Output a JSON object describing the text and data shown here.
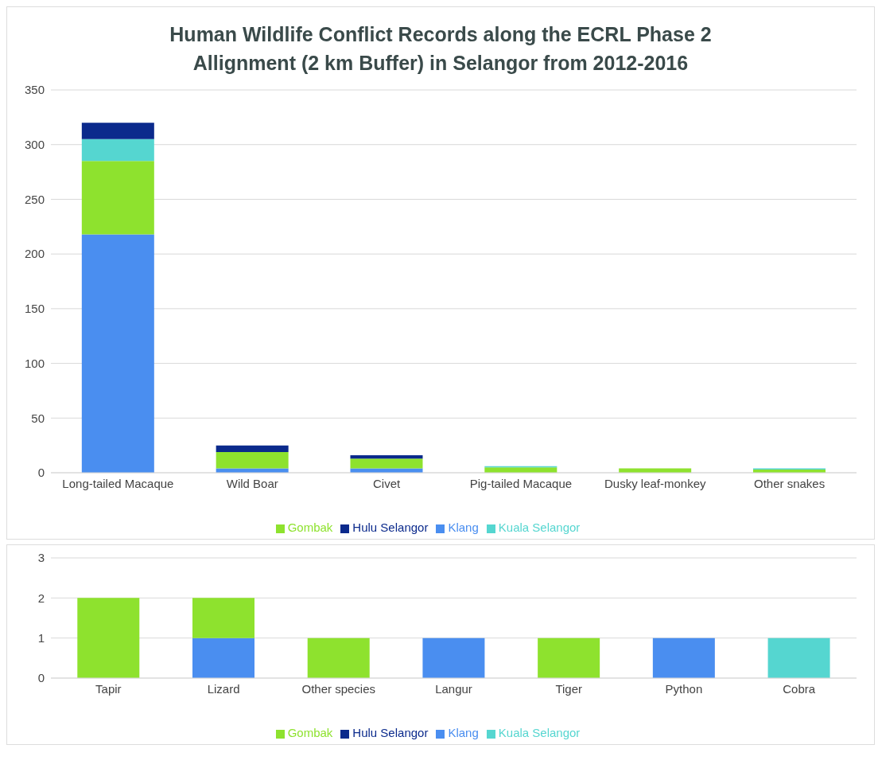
{
  "chart_data": [
    {
      "type": "bar",
      "title": "Human Wildlife Conflict Records along the ECRL Phase 2 Allignment (2 km Buffer) in Selangor from 2012-2016",
      "categories": [
        "Long-tailed Macaque",
        "Wild Boar",
        "Civet",
        "Pig-tailed Macaque",
        "Dusky leaf-monkey",
        "Other snakes"
      ],
      "stacked": true,
      "series": [
        {
          "name": "Klang",
          "color": "#4a8ef0",
          "values": [
            218,
            4,
            4,
            0,
            0,
            0
          ]
        },
        {
          "name": "Gombak",
          "color": "#8ee22e",
          "values": [
            67,
            15,
            9,
            5,
            4,
            3
          ]
        },
        {
          "name": "Kuala Selangor",
          "color": "#55d6d0",
          "values": [
            20,
            0,
            0,
            1,
            0,
            1
          ]
        },
        {
          "name": "Hulu Selangor",
          "color": "#0b2a8c",
          "values": [
            15,
            6,
            3,
            0,
            0,
            0
          ]
        }
      ],
      "ylim": [
        0,
        350
      ],
      "yticks": [
        0,
        50,
        100,
        150,
        200,
        250,
        300,
        350
      ],
      "grid": "y",
      "legend": "bottom"
    },
    {
      "type": "bar",
      "categories": [
        "Tapir",
        "Lizard",
        "Other species",
        "Langur",
        "Tiger",
        "Python",
        "Cobra"
      ],
      "stacked": true,
      "series": [
        {
          "name": "Klang",
          "color": "#4a8ef0",
          "values": [
            0,
            1,
            0,
            1,
            0,
            1,
            0
          ]
        },
        {
          "name": "Gombak",
          "color": "#8ee22e",
          "values": [
            2,
            1,
            1,
            0,
            1,
            0,
            0
          ]
        },
        {
          "name": "Kuala Selangor",
          "color": "#55d6d0",
          "values": [
            0,
            0,
            0,
            0,
            0,
            0,
            1
          ]
        },
        {
          "name": "Hulu Selangor",
          "color": "#0b2a8c",
          "values": [
            0,
            0,
            0,
            0,
            0,
            0,
            0
          ]
        }
      ],
      "ylim": [
        0,
        3
      ],
      "yticks": [
        0,
        1,
        2,
        3
      ],
      "grid": "y",
      "legend": "bottom"
    }
  ]
}
